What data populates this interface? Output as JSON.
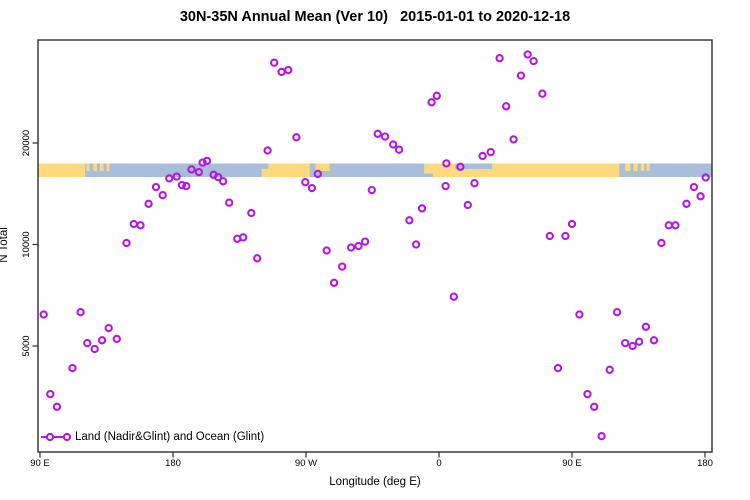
{
  "chart_data": {
    "type": "scatter",
    "title": "30N-35N Annual Mean (Ver 10)   2015-01-01 to 2020-12-18",
    "xlabel": "Longitude (deg E)",
    "ylabel": "N Total",
    "x_axis": {
      "ticks_lon": [
        90,
        180,
        270,
        360,
        450,
        540
      ],
      "tick_labels": [
        "90 E",
        "180",
        "90 W",
        "0",
        "90 E",
        "180"
      ],
      "wraps": "90E east to 180, 450 deg span"
    },
    "y_axis": {
      "scale": "log",
      "ticks": [
        20000,
        10000,
        5000
      ],
      "tick_labels": [
        "20000",
        "10000",
        "5000"
      ]
    },
    "legend": {
      "label": "Land (Nadir&Glint) and Ocean (Glint)",
      "position": "bottom-left"
    },
    "colors": {
      "point": "#B316E3",
      "land": "#FFD97D",
      "ocean": "#A9BFD9",
      "frame": "#2E2E2E",
      "text": "#000000"
    },
    "map_band": {
      "description": "world land/ocean ribbon for 30N-35N",
      "land_segments": [
        {
          "from": 89,
          "to": 120.5,
          "h": "full"
        },
        {
          "from": 121.5,
          "to": 123.5,
          "h": "top"
        },
        {
          "from": 126,
          "to": 128.5,
          "h": "top"
        },
        {
          "from": 130.5,
          "to": 133,
          "h": "top"
        },
        {
          "from": 135,
          "to": 137,
          "h": "top"
        },
        {
          "from": 240,
          "to": 272.5,
          "h": "full"
        },
        {
          "from": 276.5,
          "to": 286,
          "h": "top"
        },
        {
          "from": 350,
          "to": 482,
          "h": "full"
        },
        {
          "from": 486,
          "to": 489.5,
          "h": "top"
        },
        {
          "from": 491.5,
          "to": 494.5,
          "h": "top"
        },
        {
          "from": 496.5,
          "to": 499,
          "h": "top"
        },
        {
          "from": 500.5,
          "to": 502.5,
          "h": "top"
        }
      ],
      "ocean_notches": [
        {
          "from": 240,
          "to": 244.5,
          "h": "top"
        },
        {
          "from": 371,
          "to": 396,
          "h": "top"
        },
        {
          "from": 350,
          "to": 356,
          "h": "bottom"
        }
      ]
    },
    "points": [
      [
        92.5,
        6200
      ],
      [
        97,
        3600
      ],
      [
        101.5,
        3300
      ],
      [
        112,
        4300
      ],
      [
        117.5,
        6300
      ],
      [
        122,
        5100
      ],
      [
        127,
        4900
      ],
      [
        132,
        5200
      ],
      [
        136.5,
        5650
      ],
      [
        142,
        5250
      ],
      [
        148.5,
        10100
      ],
      [
        153.5,
        11500
      ],
      [
        158,
        11400
      ],
      [
        163.5,
        13200
      ],
      [
        168.5,
        14800
      ],
      [
        173,
        14000
      ],
      [
        177.5,
        15700
      ],
      [
        182.5,
        15900
      ],
      [
        186,
        15000
      ],
      [
        189,
        14900
      ],
      [
        192.5,
        16700
      ],
      [
        197.5,
        16400
      ],
      [
        200,
        17500
      ],
      [
        203,
        17700
      ],
      [
        207.5,
        16100
      ],
      [
        210.5,
        15850
      ],
      [
        214,
        15400
      ],
      [
        218,
        13300
      ],
      [
        223.5,
        10400
      ],
      [
        227.5,
        10500
      ],
      [
        233,
        12400
      ],
      [
        237,
        9100
      ],
      [
        244,
        19000
      ],
      [
        248.5,
        34600
      ],
      [
        253.5,
        32500
      ],
      [
        258,
        32900
      ],
      [
        263.5,
        20800
      ],
      [
        269.5,
        15300
      ],
      [
        274,
        14700
      ],
      [
        278,
        16200
      ],
      [
        284,
        9600
      ],
      [
        289,
        7700
      ],
      [
        294.5,
        8600
      ],
      [
        300.5,
        9800
      ],
      [
        305.5,
        9900
      ],
      [
        310,
        10200
      ],
      [
        314.5,
        14500
      ],
      [
        318.5,
        21300
      ],
      [
        323.5,
        20900
      ],
      [
        329,
        19800
      ],
      [
        333,
        19100
      ],
      [
        340,
        11800
      ],
      [
        344.5,
        10000
      ],
      [
        348.5,
        12800
      ],
      [
        355,
        26400
      ],
      [
        358.5,
        27600
      ],
      [
        365,
        17400
      ],
      [
        364.5,
        14900
      ],
      [
        370,
        7000
      ],
      [
        374.5,
        17000
      ],
      [
        379.5,
        13100
      ],
      [
        384,
        15200
      ],
      [
        389.5,
        18300
      ],
      [
        395,
        18800
      ],
      [
        401,
        35700
      ],
      [
        405.5,
        25700
      ],
      [
        410.5,
        20500
      ],
      [
        415.5,
        31700
      ],
      [
        420,
        36600
      ],
      [
        424,
        35000
      ],
      [
        430,
        28000
      ],
      [
        435,
        10600
      ],
      [
        440.5,
        4300
      ],
      [
        445.5,
        10600
      ],
      [
        450,
        11500
      ],
      [
        455,
        6200
      ],
      [
        460.5,
        3600
      ],
      [
        465,
        3300
      ],
      [
        470,
        2700
      ],
      [
        475.5,
        4250
      ],
      [
        480.5,
        6300
      ],
      [
        486,
        5100
      ],
      [
        491,
        5000
      ],
      [
        495.5,
        5150
      ],
      [
        500,
        5700
      ],
      [
        505.5,
        5200
      ],
      [
        510.5,
        10100
      ],
      [
        515.5,
        11400
      ],
      [
        520,
        11400
      ],
      [
        527.5,
        13200
      ],
      [
        532.5,
        14800
      ],
      [
        537,
        13900
      ],
      [
        540.5,
        15800
      ]
    ]
  }
}
